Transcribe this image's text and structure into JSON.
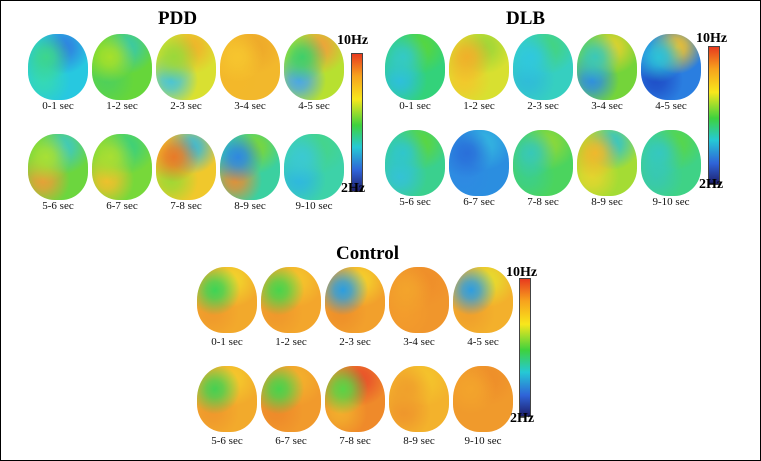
{
  "panels": [
    {
      "title": "PDD",
      "colorbar": {
        "max_label": "10Hz",
        "min_label": "2Hz"
      },
      "maps": [
        {
          "label": "0-1 sec",
          "base": "#27c8e0",
          "blobs": [
            {
              "c": "#3dd68c"
            },
            {
              "c": "#2f7fe0"
            },
            {
              "c": "#35d9b4"
            }
          ]
        },
        {
          "label": "1-2 sec",
          "base": "#66d63a",
          "blobs": [
            {
              "c": "#a6e02a"
            },
            {
              "c": "#39c9a8"
            },
            {
              "c": "#4fd05a"
            }
          ]
        },
        {
          "label": "2-3 sec",
          "base": "#d9e031",
          "blobs": [
            {
              "c": "#9ad83a"
            },
            {
              "c": "#f0b32a"
            },
            {
              "c": "#48c4d8"
            }
          ]
        },
        {
          "label": "3-4 sec",
          "base": "#f2b82c",
          "blobs": [
            {
              "c": "#f6c52e"
            },
            {
              "c": "#eea92a"
            },
            {
              "c": "#f3b82a"
            }
          ]
        },
        {
          "label": "4-5 sec",
          "base": "#b7e030",
          "blobs": [
            {
              "c": "#3fcf6a"
            },
            {
              "c": "#f0a03a"
            },
            {
              "c": "#4aa6e8"
            }
          ]
        },
        {
          "label": "5-6 sec",
          "base": "#6cd63e",
          "blobs": [
            {
              "c": "#a7e035"
            },
            {
              "c": "#3ec9c0"
            },
            {
              "c": "#e8a037"
            }
          ]
        },
        {
          "label": "6-7 sec",
          "base": "#77d83a",
          "blobs": [
            {
              "c": "#a9de32"
            },
            {
              "c": "#3bd07c"
            },
            {
              "c": "#f0c02c"
            }
          ]
        },
        {
          "label": "7-8 sec",
          "base": "#f0c82c",
          "blobs": [
            {
              "c": "#e87a28"
            },
            {
              "c": "#38b8d8"
            },
            {
              "c": "#a0d834"
            }
          ]
        },
        {
          "label": "8-9 sec",
          "base": "#3bd0a0",
          "blobs": [
            {
              "c": "#2f88e0"
            },
            {
              "c": "#7bd638"
            },
            {
              "c": "#e0903a"
            }
          ]
        },
        {
          "label": "9-10 sec",
          "base": "#3dd2a8",
          "blobs": [
            {
              "c": "#3bc9d2"
            },
            {
              "c": "#45d48a"
            },
            {
              "c": "#2fb8de"
            }
          ]
        }
      ]
    },
    {
      "title": "DLB",
      "colorbar": {
        "max_label": "10Hz",
        "min_label": "2Hz"
      },
      "maps": [
        {
          "label": "0-1 sec",
          "base": "#33d27a",
          "blobs": [
            {
              "c": "#34c9c6"
            },
            {
              "c": "#58d63c"
            },
            {
              "c": "#2dbfdc"
            }
          ]
        },
        {
          "label": "1-2 sec",
          "base": "#d8e030",
          "blobs": [
            {
              "c": "#f0b02a"
            },
            {
              "c": "#9ed638"
            },
            {
              "c": "#f2c82c"
            }
          ]
        },
        {
          "label": "2-3 sec",
          "base": "#36cfc0",
          "blobs": [
            {
              "c": "#30c8de"
            },
            {
              "c": "#44d47e"
            },
            {
              "c": "#2fbcd8"
            }
          ]
        },
        {
          "label": "3-4 sec",
          "base": "#74d43a",
          "blobs": [
            {
              "c": "#3bc8b8"
            },
            {
              "c": "#e0d22e"
            },
            {
              "c": "#2f8ee0"
            }
          ]
        },
        {
          "label": "4-5 sec",
          "base": "#2a7ee0",
          "blobs": [
            {
              "c": "#2cc2d8"
            },
            {
              "c": "#f2c22c"
            },
            {
              "c": "#1f4fc8"
            }
          ]
        },
        {
          "label": "5-6 sec",
          "base": "#3ad08e",
          "blobs": [
            {
              "c": "#30c6cc"
            },
            {
              "c": "#5cd63c"
            },
            {
              "c": "#34c2d6"
            }
          ]
        },
        {
          "label": "6-7 sec",
          "base": "#2b8ee0",
          "blobs": [
            {
              "c": "#2a6fda"
            },
            {
              "c": "#33b4e0"
            },
            {
              "c": "#2e8ae2"
            }
          ]
        },
        {
          "label": "7-8 sec",
          "base": "#4bd45e",
          "blobs": [
            {
              "c": "#37c8b8"
            },
            {
              "c": "#8ed838"
            },
            {
              "c": "#3ccf88"
            }
          ]
        },
        {
          "label": "8-9 sec",
          "base": "#a4dc34",
          "blobs": [
            {
              "c": "#f0b82c"
            },
            {
              "c": "#34c4c8"
            },
            {
              "c": "#e2d62e"
            }
          ]
        },
        {
          "label": "9-10 sec",
          "base": "#3fd286",
          "blobs": [
            {
              "c": "#35c8c0"
            },
            {
              "c": "#58d648"
            },
            {
              "c": "#38c8b0"
            }
          ]
        }
      ]
    },
    {
      "title": "Control",
      "colorbar": {
        "max_label": "10Hz",
        "min_label": "2Hz"
      },
      "maps": [
        {
          "label": "0-1 sec",
          "base": "#f2a92c",
          "blobs": [
            {
              "c": "#3ed456"
            },
            {
              "c": "#f2d42c"
            },
            {
              "c": "#f09a2c"
            }
          ]
        },
        {
          "label": "1-2 sec",
          "base": "#f3a62c",
          "blobs": [
            {
              "c": "#49d44c"
            },
            {
              "c": "#f4c42c"
            },
            {
              "c": "#ef982c"
            }
          ]
        },
        {
          "label": "2-3 sec",
          "base": "#f2a02c",
          "blobs": [
            {
              "c": "#2c9ee0"
            },
            {
              "c": "#f4d02c"
            },
            {
              "c": "#ee902a"
            }
          ]
        },
        {
          "label": "3-4 sec",
          "base": "#f0962c",
          "blobs": [
            {
              "c": "#f3a42c"
            },
            {
              "c": "#ef8e2a"
            },
            {
              "c": "#f39c2c"
            }
          ]
        },
        {
          "label": "4-5 sec",
          "base": "#f3b02c",
          "blobs": [
            {
              "c": "#2f9de0"
            },
            {
              "c": "#e6dc2e"
            },
            {
              "c": "#f0a02c"
            }
          ]
        },
        {
          "label": "5-6 sec",
          "base": "#f2aa2c",
          "blobs": [
            {
              "c": "#46d052"
            },
            {
              "c": "#f4c82c"
            },
            {
              "c": "#f0982c"
            }
          ]
        },
        {
          "label": "6-7 sec",
          "base": "#f19a2c",
          "blobs": [
            {
              "c": "#4ad24c"
            },
            {
              "c": "#f3b02c"
            },
            {
              "c": "#ee8a2a"
            }
          ]
        },
        {
          "label": "7-8 sec",
          "base": "#ef8a2a",
          "blobs": [
            {
              "c": "#5ad446"
            },
            {
              "c": "#e8502a"
            },
            {
              "c": "#f2ae2c"
            }
          ]
        },
        {
          "label": "8-9 sec",
          "base": "#f3b22c",
          "blobs": [
            {
              "c": "#f0a02c"
            },
            {
              "c": "#f4c42c"
            },
            {
              "c": "#ef962c"
            }
          ]
        },
        {
          "label": "9-10 sec",
          "base": "#f09a2c",
          "blobs": [
            {
              "c": "#f3a42c"
            },
            {
              "c": "#ee8e2a"
            },
            {
              "c": "#f09a2c"
            }
          ]
        }
      ]
    }
  ]
}
